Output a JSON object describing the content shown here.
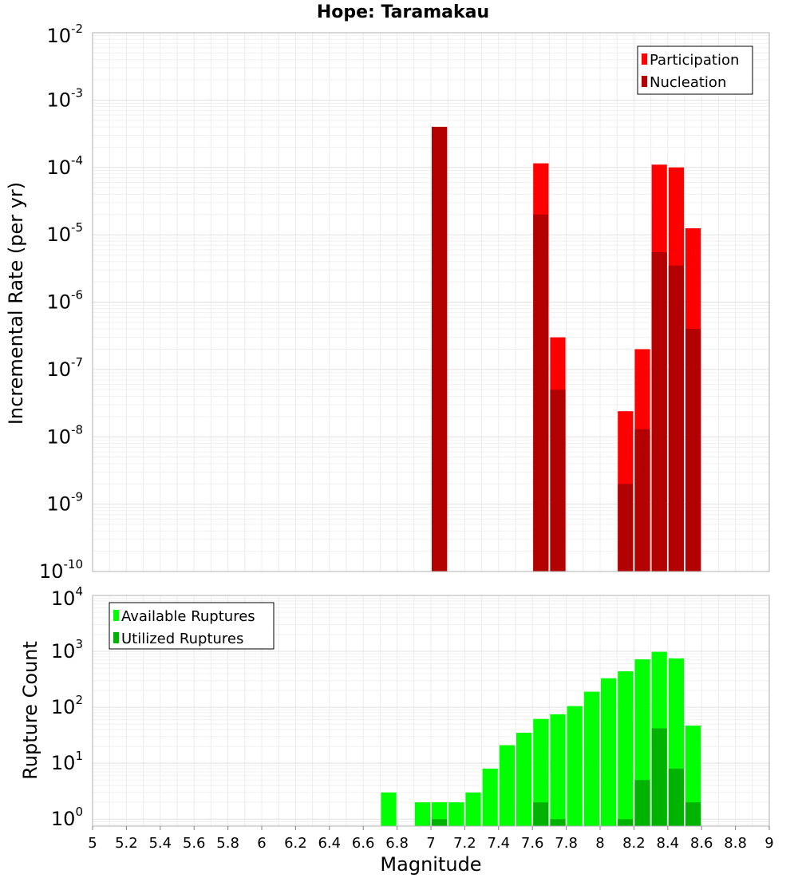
{
  "chart_data": [
    {
      "type": "bar",
      "title": "Hope: Taramakau",
      "xlabel": "",
      "ylabel": "Incremental Rate (per yr)",
      "xlim": [
        5,
        9
      ],
      "ylim": [
        1e-10,
        0.01
      ],
      "y_scale": "log",
      "y_tick_exponents": [
        -10,
        -9,
        -8,
        -7,
        -6,
        -5,
        -4,
        -3,
        -2
      ],
      "bar_width": 0.1,
      "grid": true,
      "legend_position": "top-right",
      "series": [
        {
          "name": "Participation",
          "color": "#ff0000",
          "x": [
            7.05,
            7.65,
            7.75,
            8.15,
            8.25,
            8.35,
            8.45,
            8.55
          ],
          "values": [
            0.0004,
            0.000115,
            3e-07,
            2.4e-08,
            2e-07,
            0.00011,
            0.0001,
            1.25e-05
          ]
        },
        {
          "name": "Nucleation",
          "color": "#b30000",
          "x": [
            7.05,
            7.65,
            7.75,
            8.15,
            8.25,
            8.35,
            8.45,
            8.55
          ],
          "values": [
            0.0004,
            2e-05,
            5e-08,
            2e-09,
            1.3e-08,
            5.5e-06,
            3.5e-06,
            4e-07
          ]
        }
      ]
    },
    {
      "type": "bar",
      "title": "",
      "xlabel": "Magnitude",
      "ylabel": "Rupture Count",
      "xlim": [
        5,
        9
      ],
      "ylim": [
        0.75,
        10000.0
      ],
      "y_scale": "log",
      "y_tick_exponents": [
        0,
        1,
        2,
        3,
        4
      ],
      "x_ticks": [
        "5",
        "5.2",
        "5.4",
        "5.6",
        "5.8",
        "6",
        "6.2",
        "6.4",
        "6.6",
        "6.8",
        "7",
        "7.2",
        "7.4",
        "7.6",
        "7.8",
        "8",
        "8.2",
        "8.4",
        "8.6",
        "8.8",
        "9"
      ],
      "bar_width": 0.1,
      "grid": true,
      "legend_position": "top-left",
      "series": [
        {
          "name": "Available Ruptures",
          "color": "#00ff00",
          "x": [
            6.75,
            6.95,
            7.05,
            7.15,
            7.25,
            7.35,
            7.45,
            7.55,
            7.65,
            7.75,
            7.85,
            7.95,
            8.05,
            8.15,
            8.25,
            8.35,
            8.45,
            8.55
          ],
          "values": [
            3,
            2,
            2,
            2,
            3,
            8,
            21,
            35,
            62,
            75,
            105,
            190,
            330,
            440,
            720,
            980,
            750,
            47
          ]
        },
        {
          "name": "Utilized Ruptures",
          "color": "#00b300",
          "x": [
            7.05,
            7.65,
            7.75,
            8.15,
            8.25,
            8.35,
            8.45,
            8.55
          ],
          "values": [
            1,
            2,
            1,
            1,
            5,
            42,
            8,
            2
          ]
        }
      ]
    }
  ]
}
